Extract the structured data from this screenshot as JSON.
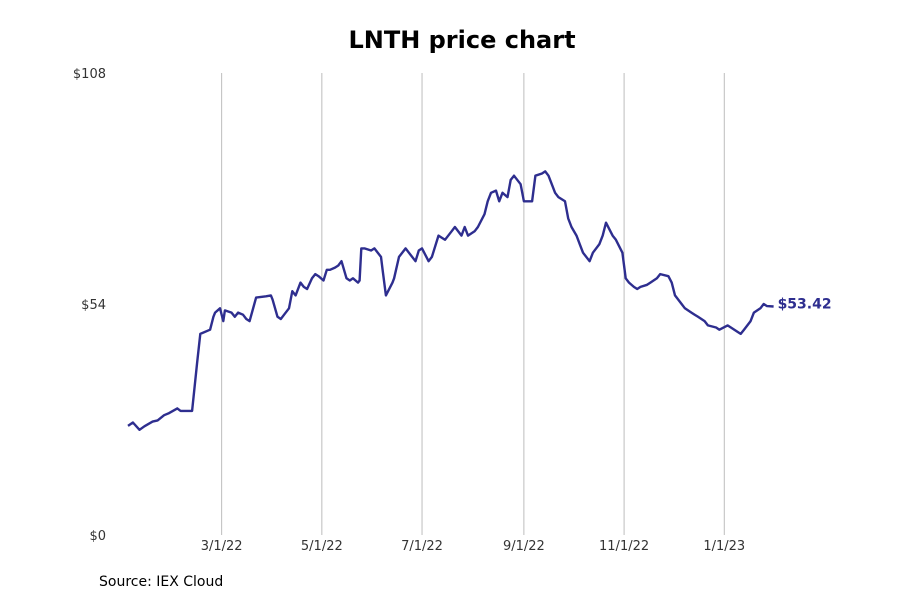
{
  "chart_data": {
    "type": "line",
    "title": "LNTH price chart",
    "source": "Source: IEX Cloud",
    "xlabel": "",
    "ylabel": "",
    "ylim": [
      0,
      108
    ],
    "xlim": [
      "2022-01-03",
      "2023-02-10"
    ],
    "y_ticks": [
      {
        "value": 0,
        "label": "$0"
      },
      {
        "value": 54,
        "label": "$54"
      },
      {
        "value": 108,
        "label": "$108"
      }
    ],
    "x_ticks": [
      {
        "date": "2022-03-01",
        "label": "3/1/22"
      },
      {
        "date": "2022-05-01",
        "label": "5/1/22"
      },
      {
        "date": "2022-07-01",
        "label": "7/1/22"
      },
      {
        "date": "2022-09-01",
        "label": "9/1/22"
      },
      {
        "date": "2022-11-01",
        "label": "11/1/22"
      },
      {
        "date": "2023-01-01",
        "label": "1/1/23"
      }
    ],
    "grid": {
      "vertical": true,
      "horizontal": false
    },
    "series": [
      {
        "color": "#2e2e8f",
        "end_label": "$53.42",
        "points": [
          [
            "2022-01-03",
            25.5
          ],
          [
            "2022-01-06",
            26.3
          ],
          [
            "2022-01-10",
            24.6
          ],
          [
            "2022-01-13",
            25.4
          ],
          [
            "2022-01-18",
            26.5
          ],
          [
            "2022-01-21",
            26.8
          ],
          [
            "2022-01-25",
            28.0
          ],
          [
            "2022-01-28",
            28.5
          ],
          [
            "2022-02-02",
            29.6
          ],
          [
            "2022-02-04",
            29.0
          ],
          [
            "2022-02-07",
            29.0
          ],
          [
            "2022-02-11",
            29.0
          ],
          [
            "2022-02-14",
            40.0
          ],
          [
            "2022-02-16",
            47.0
          ],
          [
            "2022-02-22",
            48.0
          ],
          [
            "2022-02-24",
            51.0
          ],
          [
            "2022-02-25",
            52.0
          ],
          [
            "2022-02-28",
            53.0
          ],
          [
            "2022-03-02",
            50.0
          ],
          [
            "2022-03-03",
            52.5
          ],
          [
            "2022-03-07",
            52.0
          ],
          [
            "2022-03-09",
            51.0
          ],
          [
            "2022-03-11",
            52.0
          ],
          [
            "2022-03-14",
            51.5
          ],
          [
            "2022-03-16",
            50.5
          ],
          [
            "2022-03-18",
            50.0
          ],
          [
            "2022-03-22",
            55.5
          ],
          [
            "2022-03-28",
            55.8
          ],
          [
            "2022-03-31",
            56.0
          ],
          [
            "2022-04-01",
            55.0
          ],
          [
            "2022-04-04",
            51.0
          ],
          [
            "2022-04-06",
            50.5
          ],
          [
            "2022-04-08",
            51.5
          ],
          [
            "2022-04-11",
            53.0
          ],
          [
            "2022-04-13",
            57.0
          ],
          [
            "2022-04-15",
            56.0
          ],
          [
            "2022-04-18",
            59.0
          ],
          [
            "2022-04-20",
            58.0
          ],
          [
            "2022-04-22",
            57.5
          ],
          [
            "2022-04-25",
            60.0
          ],
          [
            "2022-04-27",
            61.0
          ],
          [
            "2022-04-29",
            60.5
          ],
          [
            "2022-05-02",
            59.5
          ],
          [
            "2022-05-04",
            62.0
          ],
          [
            "2022-05-06",
            62.0
          ],
          [
            "2022-05-09",
            62.5
          ],
          [
            "2022-05-11",
            63.0
          ],
          [
            "2022-05-13",
            64.0
          ],
          [
            "2022-05-16",
            60.0
          ],
          [
            "2022-05-18",
            59.5
          ],
          [
            "2022-05-20",
            60.0
          ],
          [
            "2022-05-23",
            59.0
          ],
          [
            "2022-05-24",
            59.5
          ],
          [
            "2022-05-25",
            67.0
          ],
          [
            "2022-05-27",
            67.0
          ],
          [
            "2022-05-31",
            66.5
          ],
          [
            "2022-06-02",
            67.0
          ],
          [
            "2022-06-06",
            65.0
          ],
          [
            "2022-06-07",
            62.0
          ],
          [
            "2022-06-09",
            56.0
          ],
          [
            "2022-06-13",
            59.0
          ],
          [
            "2022-06-14",
            60.0
          ],
          [
            "2022-06-17",
            65.0
          ],
          [
            "2022-06-21",
            67.0
          ],
          [
            "2022-06-23",
            66.0
          ],
          [
            "2022-06-27",
            64.0
          ],
          [
            "2022-06-29",
            66.5
          ],
          [
            "2022-07-01",
            67.0
          ],
          [
            "2022-07-05",
            64.0
          ],
          [
            "2022-07-07",
            65.0
          ],
          [
            "2022-07-11",
            70.0
          ],
          [
            "2022-07-13",
            69.5
          ],
          [
            "2022-07-15",
            69.0
          ],
          [
            "2022-07-19",
            71.0
          ],
          [
            "2022-07-21",
            72.0
          ],
          [
            "2022-07-25",
            70.0
          ],
          [
            "2022-07-27",
            72.0
          ],
          [
            "2022-07-29",
            70.0
          ],
          [
            "2022-08-02",
            71.0
          ],
          [
            "2022-08-04",
            72.0
          ],
          [
            "2022-08-08",
            75.0
          ],
          [
            "2022-08-10",
            78.0
          ],
          [
            "2022-08-12",
            80.0
          ],
          [
            "2022-08-15",
            80.5
          ],
          [
            "2022-08-17",
            78.0
          ],
          [
            "2022-08-19",
            80.0
          ],
          [
            "2022-08-22",
            79.0
          ],
          [
            "2022-08-24",
            83.0
          ],
          [
            "2022-08-26",
            84.0
          ],
          [
            "2022-08-30",
            82.0
          ],
          [
            "2022-09-01",
            78.0
          ],
          [
            "2022-09-06",
            78.0
          ],
          [
            "2022-09-08",
            84.0
          ],
          [
            "2022-09-12",
            84.5
          ],
          [
            "2022-09-14",
            85.0
          ],
          [
            "2022-09-16",
            84.0
          ],
          [
            "2022-09-20",
            80.0
          ],
          [
            "2022-09-22",
            79.0
          ],
          [
            "2022-09-26",
            78.0
          ],
          [
            "2022-09-28",
            74.0
          ],
          [
            "2022-09-30",
            72.0
          ],
          [
            "2022-10-03",
            70.0
          ],
          [
            "2022-10-05",
            68.0
          ],
          [
            "2022-10-07",
            66.0
          ],
          [
            "2022-10-11",
            64.0
          ],
          [
            "2022-10-13",
            66.0
          ],
          [
            "2022-10-17",
            68.0
          ],
          [
            "2022-10-19",
            70.0
          ],
          [
            "2022-10-21",
            73.0
          ],
          [
            "2022-10-25",
            70.0
          ],
          [
            "2022-10-27",
            69.0
          ],
          [
            "2022-10-31",
            66.0
          ],
          [
            "2022-11-02",
            60.0
          ],
          [
            "2022-11-04",
            59.0
          ],
          [
            "2022-11-07",
            58.0
          ],
          [
            "2022-11-09",
            57.5
          ],
          [
            "2022-11-11",
            58.0
          ],
          [
            "2022-11-15",
            58.5
          ],
          [
            "2022-11-17",
            59.0
          ],
          [
            "2022-11-21",
            60.0
          ],
          [
            "2022-11-23",
            61.0
          ],
          [
            "2022-11-28",
            60.5
          ],
          [
            "2022-11-30",
            59.0
          ],
          [
            "2022-12-02",
            56.0
          ],
          [
            "2022-12-06",
            54.0
          ],
          [
            "2022-12-08",
            53.0
          ],
          [
            "2022-12-12",
            52.0
          ],
          [
            "2022-12-14",
            51.5
          ],
          [
            "2022-12-16",
            51.0
          ],
          [
            "2022-12-20",
            50.0
          ],
          [
            "2022-12-22",
            49.0
          ],
          [
            "2022-12-27",
            48.5
          ],
          [
            "2022-12-29",
            48.0
          ],
          [
            "2023-01-03",
            49.0
          ],
          [
            "2023-01-05",
            48.5
          ],
          [
            "2023-01-09",
            47.5
          ],
          [
            "2023-01-11",
            47.0
          ],
          [
            "2023-01-13",
            48.0
          ],
          [
            "2023-01-17",
            50.0
          ],
          [
            "2023-01-19",
            52.0
          ],
          [
            "2023-01-23",
            53.0
          ],
          [
            "2023-01-25",
            54.0
          ],
          [
            "2023-01-27",
            53.5
          ],
          [
            "2023-01-31",
            53.42
          ]
        ]
      }
    ]
  }
}
